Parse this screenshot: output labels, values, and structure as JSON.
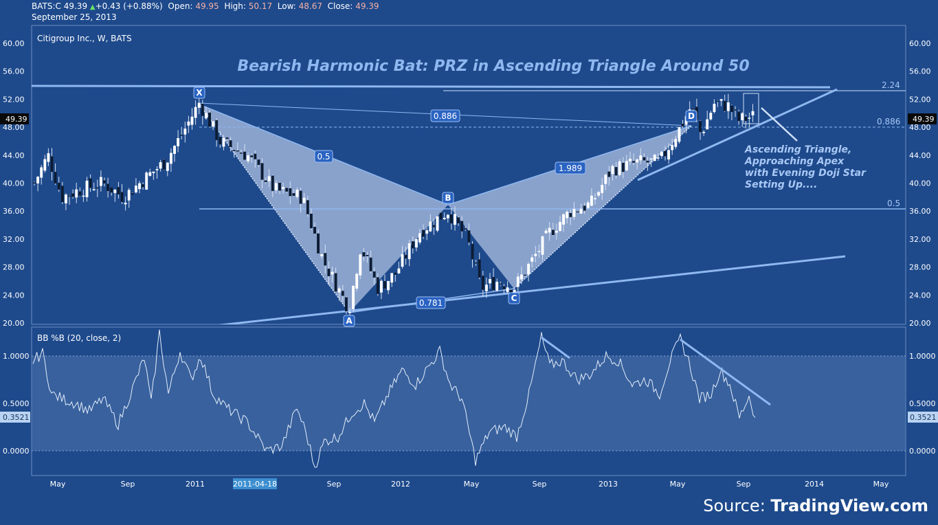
{
  "header": {
    "symbol": "BATS:C",
    "last": "49.39",
    "change": "+0.43 (+0.88%)",
    "open_label": "Open:",
    "open": "49.95",
    "high_label": "High:",
    "high": "50.17",
    "low_label": "Low:",
    "low": "48.67",
    "close_label": "Close:",
    "close": "49.39",
    "date": "September 25, 2013"
  },
  "main_panel": {
    "legend": "Citigroup Inc., W, BATS",
    "title": "Bearish Harmonic Bat: PRZ in Ascending Triangle Around 50",
    "y_ticks": [
      "60.00",
      "56.00",
      "52.00",
      "48.00",
      "44.00",
      "40.00",
      "36.00",
      "32.00",
      "28.00",
      "24.00",
      "20.00"
    ],
    "price_label": "49.39",
    "annotation_lines": [
      "Ascending Triangle,",
      "Approaching Apex",
      "with Evening Doji Star",
      "Setting Up...."
    ],
    "points": [
      "X",
      "A",
      "B",
      "C",
      "D"
    ],
    "ratios": {
      "xb": "0.5",
      "ac": "0.781",
      "bd": "1.989",
      "xd": "0.886"
    },
    "fib_levels": [
      "2.24",
      "0.886",
      "0.5"
    ]
  },
  "indicator_panel": {
    "legend": "BB %B (20, close, 2)",
    "y_ticks": [
      "1.0000",
      "0.5000",
      "0.0000"
    ],
    "value_label": "0.3521"
  },
  "x_axis": {
    "ticks": [
      "May",
      "Sep",
      "2011",
      "Sep",
      "2012",
      "May",
      "Sep",
      "2013",
      "May",
      "Sep",
      "2014",
      "May"
    ],
    "highlight": "2011-04-18"
  },
  "source": {
    "prefix": "Source: ",
    "brand": "TradingView.com"
  },
  "colors": {
    "background": "#1e4a8c",
    "line": "#8fb8f0",
    "pattern_fill": "#a9bfe0"
  },
  "chart_data": {
    "type": "candlestick",
    "title": "Bearish Harmonic Bat: PRZ in Ascending Triangle Around 50",
    "series": [
      {
        "name": "Citigroup Inc., W, BATS",
        "points_xabcd": [
          {
            "label": "X",
            "date": "2011-01",
            "value": 51.5
          },
          {
            "label": "A",
            "date": "2011-10",
            "value": 21.5
          },
          {
            "label": "B",
            "date": "2012-03",
            "value": 36.5
          },
          {
            "label": "C",
            "date": "2012-07",
            "value": 24.8
          },
          {
            "label": "D",
            "date": "2013-05",
            "value": 48.3
          }
        ]
      },
      {
        "name": "BB %B (20, close, 2)",
        "last": 0.3521
      }
    ],
    "ylim": [
      20,
      61
    ],
    "ylim_indicator": [
      -0.2,
      1.25
    ]
  }
}
